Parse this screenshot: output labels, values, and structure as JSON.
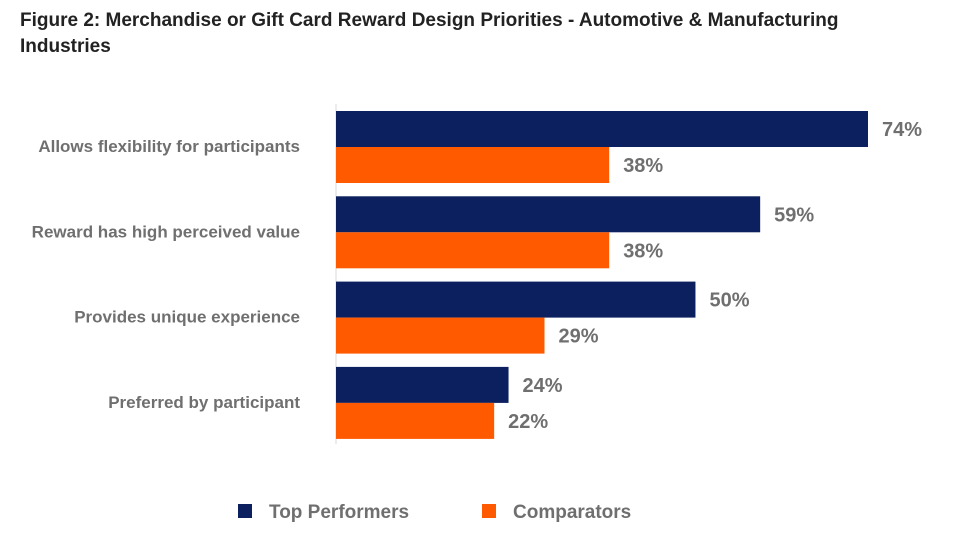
{
  "title": "Figure 2: Merchandise or Gift Card Reward Design Priorities -  Automotive & Manufacturing Industries",
  "colors": {
    "top_performers": "#0c1f5e",
    "comparators": "#ff5a00"
  },
  "chart_data": {
    "type": "bar",
    "orientation": "horizontal",
    "title": "Figure 2: Merchandise or Gift Card Reward Design Priorities -  Automotive & Manufacturing Industries",
    "xlabel": "",
    "ylabel": "",
    "categories": [
      "Allows flexibility for participants",
      "Reward has high perceived value",
      "Provides unique experience",
      "Preferred by participant"
    ],
    "series": [
      {
        "name": "Top Performers",
        "values": [
          74,
          59,
          50,
          24
        ],
        "labels": [
          "74%",
          "59%",
          "50%",
          "24%"
        ],
        "color": "#0c1f5e"
      },
      {
        "name": "Comparators",
        "values": [
          38,
          38,
          29,
          22
        ],
        "labels": [
          "38%",
          "38%",
          "29%",
          "22%"
        ],
        "color": "#ff5a00"
      }
    ],
    "xlim": [
      0,
      74
    ],
    "grid": false,
    "legend_position": "bottom"
  }
}
